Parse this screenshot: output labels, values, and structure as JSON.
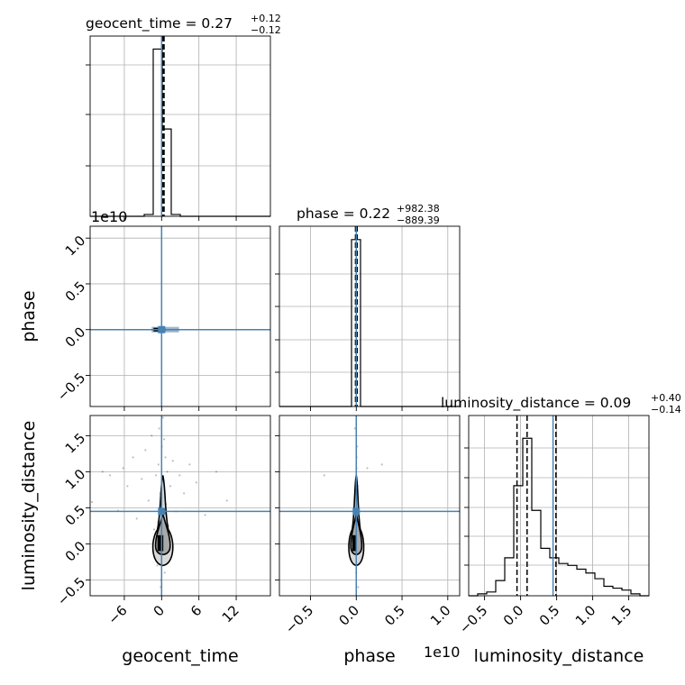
{
  "chart_data": {
    "type": "corner",
    "parameters": [
      "geocent_time",
      "phase",
      "luminosity_distance"
    ],
    "truth_color": "#4682b4",
    "grid": true,
    "titles": {
      "geocent_time": {
        "prefix": "geocent_time = 0.27",
        "plus": "+0.12",
        "minus": "−0.12"
      },
      "phase": {
        "prefix": "phase = 0.22",
        "plus": "+982.38",
        "minus": "−889.39"
      },
      "luminosity_distance": {
        "prefix": "luminosity_distance = 0.09",
        "plus": "+0.40",
        "minus": "−0.14"
      }
    },
    "axis_labels": {
      "geocent_time": "geocent_time",
      "phase": "phase",
      "luminosity_distance": "luminosity_distance"
    },
    "offset_labels": {
      "phase_y": "1e10",
      "phase_x": "1e10"
    },
    "ranges": {
      "geocent_time": [
        -11.5,
        17.5
      ],
      "phase_e10": [
        -0.84,
        1.13
      ],
      "luminosity_distance": [
        -0.72,
        1.78
      ]
    },
    "ticks": {
      "geocent_time": {
        "values": [
          -6,
          0,
          6,
          12
        ],
        "labels": [
          "−6",
          "0",
          "6",
          "12"
        ]
      },
      "phase_e10": {
        "y_values": [
          -0.5,
          0.0,
          0.5,
          1.0
        ],
        "y_labels": [
          "−0.5",
          "0.0",
          "0.5",
          "1.0"
        ],
        "x_values": [
          -0.5,
          0.0,
          0.5,
          1.0
        ],
        "x_labels": [
          "−0.5",
          "0.0",
          "0.5",
          "1.0"
        ]
      },
      "luminosity_distance": {
        "values": [
          -0.5,
          0.0,
          0.5,
          1.0,
          1.5
        ],
        "labels": [
          "−0.5",
          "0.0",
          "0.5",
          "1.0",
          "1.5"
        ]
      }
    },
    "truths": {
      "geocent_time": 0.0,
      "phase_e10": 0.0,
      "luminosity_distance": 0.45
    },
    "quantiles": {
      "geocent_time": [
        0.15,
        0.27,
        0.39
      ],
      "phase_e10": [
        -0.009,
        0.0,
        0.01
      ],
      "luminosity_distance": [
        -0.05,
        0.09,
        0.49
      ]
    },
    "hist_geocent_time": {
      "edges": [
        -11.5,
        -10.05,
        -8.6,
        -7.15,
        -5.7,
        -4.25,
        -2.8,
        -1.35,
        0.1,
        1.55,
        3.0,
        4.45,
        5.9,
        7.35,
        8.8,
        10.25,
        11.7,
        13.15,
        14.6,
        16.05,
        17.5
      ],
      "counts": [
        0,
        0,
        0,
        0,
        0,
        0,
        2,
        180,
        94,
        2,
        0,
        0,
        0,
        0,
        0,
        0,
        0,
        0,
        0,
        0
      ]
    },
    "hist_phase": {
      "edges": [
        -0.84,
        -0.7415,
        -0.643,
        -0.5445,
        -0.446,
        -0.3475,
        -0.249,
        -0.1505,
        -0.052,
        0.0465,
        0.145,
        0.2435,
        0.342,
        0.4405,
        0.539,
        0.6375,
        0.736,
        0.8345,
        0.933,
        1.0315,
        1.13
      ],
      "counts": [
        0,
        0,
        0,
        0,
        0,
        0,
        0,
        0,
        100,
        0,
        0,
        0,
        0,
        0,
        0,
        0,
        0,
        0,
        0,
        0
      ]
    },
    "hist_luminosity_distance": {
      "edges": [
        -0.72,
        -0.595,
        -0.47,
        -0.345,
        -0.22,
        -0.095,
        0.03,
        0.155,
        0.28,
        0.405,
        0.53,
        0.655,
        0.78,
        0.905,
        1.03,
        1.155,
        1.28,
        1.405,
        1.53,
        1.655,
        1.78
      ],
      "counts": [
        0,
        1,
        2,
        8,
        20,
        58,
        83,
        45,
        25,
        20,
        17,
        16,
        14,
        12,
        9,
        5,
        4,
        3,
        1,
        0
      ]
    },
    "scatter_time_dist": [
      {
        "x": -11.2,
        "y": 0.58
      },
      {
        "x": -9.5,
        "y": 1.0
      },
      {
        "x": -8.3,
        "y": 0.95
      },
      {
        "x": -7.0,
        "y": 0.46
      },
      {
        "x": -6.2,
        "y": 1.05
      },
      {
        "x": -5.5,
        "y": 0.8
      },
      {
        "x": -4.6,
        "y": 1.2
      },
      {
        "x": -4.0,
        "y": 0.35
      },
      {
        "x": -3.2,
        "y": 0.9
      },
      {
        "x": -2.6,
        "y": 1.3
      },
      {
        "x": -2.1,
        "y": 0.6
      },
      {
        "x": -1.6,
        "y": 1.5
      },
      {
        "x": -1.2,
        "y": 0.2
      },
      {
        "x": -0.9,
        "y": 0.95
      },
      {
        "x": -0.7,
        "y": -0.3
      },
      {
        "x": -0.5,
        "y": 1.1
      },
      {
        "x": -0.4,
        "y": 1.6
      },
      {
        "x": -0.2,
        "y": 0.7
      },
      {
        "x": -0.1,
        "y": -0.5
      },
      {
        "x": 0.05,
        "y": 1.35
      },
      {
        "x": 0.2,
        "y": 1.75
      },
      {
        "x": 0.3,
        "y": 0.85
      },
      {
        "x": 0.4,
        "y": 1.45
      },
      {
        "x": 0.5,
        "y": -0.4
      },
      {
        "x": 0.6,
        "y": 1.2
      },
      {
        "x": 0.7,
        "y": 0.55
      },
      {
        "x": 0.9,
        "y": 1.0
      },
      {
        "x": 1.1,
        "y": 0.25
      },
      {
        "x": 1.4,
        "y": 0.8
      },
      {
        "x": 1.8,
        "y": 1.15
      },
      {
        "x": 2.3,
        "y": 0.45
      },
      {
        "x": 2.9,
        "y": 0.95
      },
      {
        "x": 3.6,
        "y": 0.7
      },
      {
        "x": 4.5,
        "y": 1.1
      },
      {
        "x": 5.6,
        "y": 0.85
      },
      {
        "x": 7.0,
        "y": 0.4
      },
      {
        "x": 8.8,
        "y": 1.0
      },
      {
        "x": 10.5,
        "y": 0.6
      },
      {
        "x": -0.3,
        "y": 0.05
      },
      {
        "x": 0.15,
        "y": -0.15
      },
      {
        "x": -0.6,
        "y": 0.3
      },
      {
        "x": 0.45,
        "y": 0.1
      },
      {
        "x": 0.1,
        "y": 0.5
      },
      {
        "x": -0.15,
        "y": -0.6
      }
    ],
    "scatter_phase_dist": [
      {
        "x": 0.0,
        "y": 1.5
      },
      {
        "x": 0.005,
        "y": 1.2
      },
      {
        "x": -0.005,
        "y": 0.9
      },
      {
        "x": 0.01,
        "y": 1.35
      },
      {
        "x": -0.01,
        "y": 0.7
      },
      {
        "x": 0.003,
        "y": 1.05
      },
      {
        "x": -0.003,
        "y": 0.55
      },
      {
        "x": 0.12,
        "y": 1.05
      },
      {
        "x": 0.28,
        "y": 1.1
      },
      {
        "x": -0.35,
        "y": 0.95
      },
      {
        "x": 0.0,
        "y": -0.4
      },
      {
        "x": 0.02,
        "y": -0.6
      },
      {
        "x": -0.02,
        "y": 0.3
      },
      {
        "x": 0.015,
        "y": 0.8
      },
      {
        "x": -0.015,
        "y": 1.6
      },
      {
        "x": 0.008,
        "y": -0.2
      }
    ]
  }
}
